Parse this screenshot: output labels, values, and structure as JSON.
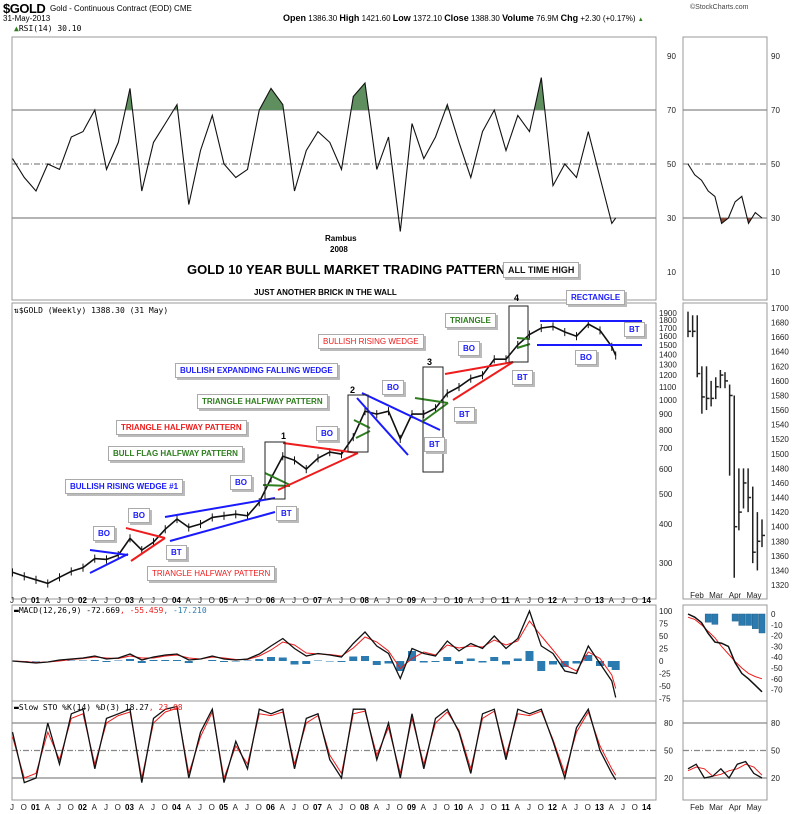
{
  "header": {
    "symbol": "$GOLD",
    "name": "Gold - Continuous Contract (EOD) CME",
    "date": "31-May-2013",
    "copyright": "©StockCharts.com",
    "open_label": "Open",
    "open": "1386.30",
    "high_label": "High",
    "high": "1421.60",
    "low_label": "Low",
    "low": "1372.10",
    "close_label": "Close",
    "close": "1388.30",
    "volume_label": "Volume",
    "volume": "76.9M",
    "chg_label": "Chg",
    "chg": "+2.30 (+0.17%)",
    "chg_icon": "triangle-up-icon"
  },
  "annotations": {
    "author": "Rambus",
    "year": "2008",
    "title": "GOLD 10 YEAR BULL MARKET TRADING PATTERNS",
    "subtitle": "JUST ANOTHER BRICK IN THE WALL",
    "all_time_high": "ALL TIME HIGH",
    "rectangle": "RECTANGLE",
    "triangle": "TRIANGLE",
    "bullish_rising_wedge": "BULLISH RISING WEDGE",
    "bullish_expanding_falling_wedge": "BULLISH EXPANDING FALLING WEDGE",
    "triangle_halfway_green": "TRIANGLE HALFWAY PATTERN",
    "triangle_halfway_red": "TRIANGLE HALFWAY PATTERN",
    "bull_flag_halfway": "BULL FLAG HALFWAY PATTERN",
    "bullish_rising_wedge_1": "BULLISH RISING WEDGE #1",
    "triangle_halfway_bottom": "TRIANGLE HALFWAY PATTERN",
    "bo": "BO",
    "bt": "BT",
    "n1": "1",
    "n2": "2",
    "n3": "3",
    "n4": "4"
  },
  "colors": {
    "blue": "#1a1aff",
    "red": "#ee1c1c",
    "green": "#2e7d1e",
    "histogram": "#2b7bb0",
    "rsi_fill_high": "#5f8f5f",
    "rsi_fill_low": "#8a4a3a"
  },
  "chart_data": [
    {
      "type": "line",
      "panel": "RSI",
      "label": "RSI(14) 30.10",
      "levels": [
        70,
        50,
        30
      ],
      "yticks": [
        "90",
        "70",
        "50",
        "30",
        "10"
      ],
      "ylim": [
        0,
        100
      ],
      "dates": [
        "2000-07",
        "2000-10",
        "2001-01",
        "2001-04",
        "2001-07",
        "2001-10",
        "2002-01",
        "2002-04",
        "2002-07",
        "2002-10",
        "2003-01",
        "2003-04",
        "2003-07",
        "2003-10",
        "2004-01",
        "2004-04",
        "2004-07",
        "2004-10",
        "2005-01",
        "2005-04",
        "2005-07",
        "2005-10",
        "2006-01",
        "2006-04",
        "2006-07",
        "2006-10",
        "2007-01",
        "2007-04",
        "2007-07",
        "2007-10",
        "2008-01",
        "2008-04",
        "2008-07",
        "2008-10",
        "2009-01",
        "2009-04",
        "2009-07",
        "2009-10",
        "2010-01",
        "2010-04",
        "2010-07",
        "2010-10",
        "2011-01",
        "2011-04",
        "2011-07",
        "2011-10",
        "2012-01",
        "2012-04",
        "2012-07",
        "2012-10",
        "2013-01",
        "2013-04",
        "2013-05"
      ],
      "values": [
        52,
        45,
        40,
        50,
        48,
        60,
        62,
        70,
        48,
        58,
        78,
        40,
        58,
        65,
        72,
        35,
        55,
        68,
        50,
        45,
        48,
        70,
        78,
        72,
        40,
        55,
        62,
        58,
        48,
        75,
        80,
        48,
        60,
        25,
        65,
        52,
        60,
        72,
        58,
        45,
        62,
        70,
        55,
        68,
        62,
        82,
        42,
        50,
        45,
        62,
        45,
        28,
        30
      ]
    },
    {
      "type": "line",
      "panel": "price",
      "label": "$GOLD (Weekly) 1388.30 (31 May)",
      "scale": "log",
      "yticks": [
        "1900",
        "1800",
        "1700",
        "1600",
        "1500",
        "1400",
        "1300",
        "1200",
        "1100",
        "1000",
        "900",
        "800",
        "700",
        "600",
        "500",
        "400",
        "300"
      ],
      "dates": [
        "2000-07",
        "2000-10",
        "2001-01",
        "2001-04",
        "2001-07",
        "2001-10",
        "2002-01",
        "2002-04",
        "2002-07",
        "2002-10",
        "2003-01",
        "2003-04",
        "2003-07",
        "2003-10",
        "2004-01",
        "2004-04",
        "2004-07",
        "2004-10",
        "2005-01",
        "2005-04",
        "2005-07",
        "2005-10",
        "2006-01",
        "2006-04",
        "2006-07",
        "2006-10",
        "2007-01",
        "2007-04",
        "2007-07",
        "2007-10",
        "2008-01",
        "2008-04",
        "2008-07",
        "2008-10",
        "2009-01",
        "2009-04",
        "2009-07",
        "2009-10",
        "2010-01",
        "2010-04",
        "2010-07",
        "2010-10",
        "2011-01",
        "2011-04",
        "2011-07",
        "2011-10",
        "2012-01",
        "2012-04",
        "2012-07",
        "2012-10",
        "2013-01",
        "2013-04",
        "2013-05"
      ],
      "values": [
        280,
        272,
        265,
        258,
        270,
        282,
        290,
        310,
        308,
        318,
        360,
        330,
        350,
        385,
        415,
        390,
        400,
        420,
        425,
        430,
        425,
        470,
        560,
        660,
        640,
        600,
        650,
        680,
        670,
        760,
        920,
        900,
        920,
        750,
        900,
        900,
        940,
        1050,
        1100,
        1170,
        1200,
        1350,
        1350,
        1500,
        1620,
        1700,
        1720,
        1650,
        1600,
        1750,
        1670,
        1480,
        1388
      ]
    },
    {
      "type": "line",
      "panel": "MACD",
      "label": "MACD(12,26,9) -72.669, -55.459, -17.210",
      "label_parts": [
        "MACD(12,26,9) -72.669",
        ", -55.459",
        ", -17.210"
      ],
      "yticks": [
        "100",
        "75",
        "50",
        "25",
        "0",
        "-25",
        "-50",
        "-75"
      ],
      "dates": [
        "2000-07",
        "2000-10",
        "2001-01",
        "2001-04",
        "2001-07",
        "2001-10",
        "2002-01",
        "2002-04",
        "2002-07",
        "2002-10",
        "2003-01",
        "2003-04",
        "2003-07",
        "2003-10",
        "2004-01",
        "2004-04",
        "2004-07",
        "2004-10",
        "2005-01",
        "2005-04",
        "2005-07",
        "2005-10",
        "2006-01",
        "2006-04",
        "2006-07",
        "2006-10",
        "2007-01",
        "2007-04",
        "2007-07",
        "2007-10",
        "2008-01",
        "2008-04",
        "2008-07",
        "2008-10",
        "2009-01",
        "2009-04",
        "2009-07",
        "2009-10",
        "2010-01",
        "2010-04",
        "2010-07",
        "2010-10",
        "2011-01",
        "2011-04",
        "2011-07",
        "2011-10",
        "2012-01",
        "2012-04",
        "2012-07",
        "2012-10",
        "2013-01",
        "2013-04",
        "2013-05"
      ],
      "series": [
        {
          "name": "MACD",
          "values": [
            0,
            -2,
            -4,
            -2,
            2,
            4,
            6,
            10,
            4,
            6,
            14,
            2,
            8,
            12,
            14,
            2,
            4,
            10,
            4,
            2,
            4,
            14,
            30,
            45,
            25,
            10,
            15,
            12,
            8,
            35,
            58,
            30,
            15,
            -35,
            25,
            15,
            10,
            40,
            20,
            35,
            25,
            50,
            25,
            45,
            100,
            30,
            15,
            -20,
            -25,
            30,
            -5,
            -40,
            -73
          ]
        },
        {
          "name": "Signal",
          "values": [
            0,
            -1,
            -3,
            -2,
            0,
            3,
            5,
            8,
            6,
            5,
            10,
            6,
            6,
            10,
            12,
            6,
            4,
            8,
            6,
            3,
            3,
            10,
            22,
            38,
            32,
            16,
            14,
            13,
            10,
            26,
            48,
            38,
            20,
            -15,
            5,
            18,
            12,
            32,
            26,
            30,
            28,
            42,
            32,
            40,
            80,
            50,
            22,
            -8,
            -20,
            18,
            5,
            -28,
            -55
          ]
        }
      ]
    },
    {
      "type": "line",
      "panel": "Slow STO",
      "label": "Slow STO %K(14) %D(3) 18.27, 23.08",
      "label_parts": [
        "Slow STO %K(14) %D(3) 18.27",
        ", 23.08"
      ],
      "levels": [
        80,
        50,
        20
      ],
      "yticks": [
        "80",
        "50",
        "20"
      ],
      "dates": [
        "2000-07",
        "2000-10",
        "2001-01",
        "2001-04",
        "2001-07",
        "2001-10",
        "2002-01",
        "2002-04",
        "2002-07",
        "2002-10",
        "2003-01",
        "2003-04",
        "2003-07",
        "2003-10",
        "2004-01",
        "2004-04",
        "2004-07",
        "2004-10",
        "2005-01",
        "2005-04",
        "2005-07",
        "2005-10",
        "2006-01",
        "2006-04",
        "2006-07",
        "2006-10",
        "2007-01",
        "2007-04",
        "2007-07",
        "2007-10",
        "2008-01",
        "2008-04",
        "2008-07",
        "2008-10",
        "2009-01",
        "2009-04",
        "2009-07",
        "2009-10",
        "2010-01",
        "2010-04",
        "2010-07",
        "2010-10",
        "2011-01",
        "2011-04",
        "2011-07",
        "2011-10",
        "2012-01",
        "2012-04",
        "2012-07",
        "2012-10",
        "2013-01",
        "2013-04",
        "2013-05"
      ],
      "series": [
        {
          "name": "%K",
          "values": [
            70,
            15,
            20,
            80,
            35,
            90,
            95,
            30,
            85,
            90,
            95,
            15,
            85,
            95,
            98,
            20,
            70,
            95,
            15,
            60,
            30,
            95,
            90,
            95,
            30,
            85,
            90,
            40,
            20,
            95,
            95,
            40,
            80,
            20,
            90,
            30,
            85,
            95,
            70,
            25,
            90,
            95,
            40,
            95,
            90,
            95,
            60,
            20,
            75,
            95,
            50,
            25,
            18
          ]
        },
        {
          "name": "%D",
          "values": [
            65,
            20,
            25,
            70,
            40,
            85,
            90,
            35,
            80,
            88,
            92,
            20,
            80,
            92,
            96,
            25,
            65,
            92,
            20,
            55,
            35,
            90,
            88,
            92,
            35,
            80,
            88,
            45,
            25,
            90,
            93,
            45,
            75,
            25,
            85,
            35,
            80,
            92,
            72,
            30,
            85,
            93,
            45,
            90,
            88,
            93,
            62,
            25,
            70,
            92,
            55,
            30,
            23
          ]
        }
      ]
    },
    {
      "type": "line",
      "panel": "mini-daily",
      "xticks": [
        "Feb",
        "Mar",
        "Apr",
        "May"
      ],
      "price_yticks": [
        "1700",
        "1680",
        "1660",
        "1640",
        "1620",
        "1600",
        "1580",
        "1560",
        "1540",
        "1520",
        "1500",
        "1480",
        "1460",
        "1440",
        "1420",
        "1400",
        "1380",
        "1360",
        "1340",
        "1320"
      ],
      "rsi_values": [
        50,
        46,
        44,
        40,
        38,
        28,
        30,
        36,
        38,
        28,
        32,
        30
      ],
      "price_bars": [
        {
          "date": "2013-02-01",
          "high": 1695,
          "low": 1660,
          "close": 1668
        },
        {
          "date": "2013-02-08",
          "high": 1690,
          "low": 1660,
          "close": 1668
        },
        {
          "date": "2013-02-15",
          "high": 1690,
          "low": 1605,
          "close": 1610
        },
        {
          "date": "2013-02-22",
          "high": 1620,
          "low": 1555,
          "close": 1578
        },
        {
          "date": "2013-03-01",
          "high": 1620,
          "low": 1560,
          "close": 1576
        },
        {
          "date": "2013-03-08",
          "high": 1600,
          "low": 1565,
          "close": 1576
        },
        {
          "date": "2013-03-15",
          "high": 1605,
          "low": 1575,
          "close": 1592
        },
        {
          "date": "2013-03-22",
          "high": 1615,
          "low": 1590,
          "close": 1608
        },
        {
          "date": "2013-03-29",
          "high": 1612,
          "low": 1590,
          "close": 1600
        },
        {
          "date": "2013-04-05",
          "high": 1595,
          "low": 1470,
          "close": 1580
        },
        {
          "date": "2013-04-12",
          "high": 1580,
          "low": 1330,
          "close": 1400
        },
        {
          "date": "2013-04-19",
          "high": 1480,
          "low": 1395,
          "close": 1420
        },
        {
          "date": "2013-04-26",
          "high": 1480,
          "low": 1425,
          "close": 1460
        },
        {
          "date": "2013-05-03",
          "high": 1480,
          "low": 1420,
          "close": 1440
        },
        {
          "date": "2013-05-10",
          "high": 1455,
          "low": 1350,
          "close": 1365
        },
        {
          "date": "2013-05-17",
          "high": 1420,
          "low": 1340,
          "close": 1380
        },
        {
          "date": "2013-05-24",
          "high": 1410,
          "low": 1372,
          "close": 1388
        }
      ],
      "macd_yticks": [
        "0",
        "-10",
        "-20",
        "-30",
        "-40",
        "-50",
        "-60",
        "-70"
      ],
      "macd": [
        0,
        -3,
        -8,
        -18,
        -26,
        -27,
        -30,
        -45,
        -55,
        -60,
        -66,
        -72
      ],
      "signal": [
        -3,
        -5,
        -10,
        -16,
        -22,
        -30,
        -37,
        -44,
        -50,
        -55,
        -58,
        -60
      ],
      "sto_k": [
        30,
        35,
        20,
        22,
        30,
        20,
        35,
        38,
        25,
        20
      ],
      "sto_d": [
        28,
        32,
        30,
        22,
        24,
        28,
        30,
        35,
        32,
        23
      ]
    }
  ],
  "x_axis": {
    "labels": [
      "J",
      "O",
      "01",
      "A",
      "J",
      "O",
      "02",
      "A",
      "J",
      "O",
      "03",
      "A",
      "J",
      "O",
      "04",
      "A",
      "J",
      "O",
      "05",
      "A",
      "J",
      "O",
      "06",
      "A",
      "J",
      "O",
      "07",
      "A",
      "J",
      "O",
      "08",
      "A",
      "J",
      "O",
      "09",
      "A",
      "J",
      "O",
      "10",
      "A",
      "J",
      "O",
      "11",
      "A",
      "J",
      "O",
      "12",
      "A",
      "J",
      "O",
      "13",
      "A",
      "J",
      "O",
      "14"
    ]
  }
}
